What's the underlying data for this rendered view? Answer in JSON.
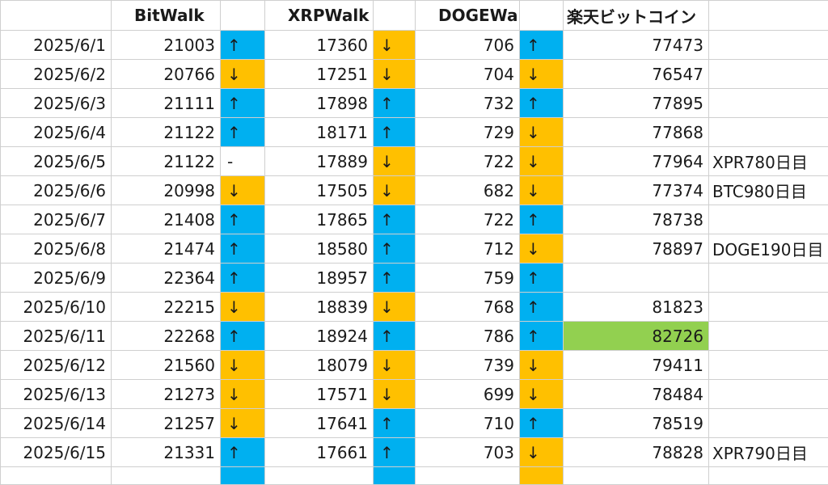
{
  "header": {
    "date": "",
    "bitwalk": "BitWalk",
    "xrpwalk": "XRPWalk",
    "dogewalk": "DOGEWalk",
    "rakuten": "楽天ビットコイン",
    "note": ""
  },
  "rows": [
    {
      "date": "2025/6/1",
      "bit": "21003",
      "bit_arrow": "↑",
      "bit_dir": "up",
      "xrp": "17360",
      "xrp_arrow": "↓",
      "xrp_dir": "down",
      "doge": "706",
      "doge_arrow": "↑",
      "doge_dir": "up",
      "rak": "77473",
      "note": ""
    },
    {
      "date": "2025/6/2",
      "bit": "20766",
      "bit_arrow": "↓",
      "bit_dir": "down",
      "xrp": "17251",
      "xrp_arrow": "↓",
      "xrp_dir": "down",
      "doge": "704",
      "doge_arrow": "↓",
      "doge_dir": "down",
      "rak": "76547",
      "note": ""
    },
    {
      "date": "2025/6/3",
      "bit": "21111",
      "bit_arrow": "↑",
      "bit_dir": "up",
      "xrp": "17898",
      "xrp_arrow": "↑",
      "xrp_dir": "up",
      "doge": "732",
      "doge_arrow": "↑",
      "doge_dir": "up",
      "rak": "77895",
      "note": ""
    },
    {
      "date": "2025/6/4",
      "bit": "21122",
      "bit_arrow": "↑",
      "bit_dir": "up",
      "xrp": "18171",
      "xrp_arrow": "↑",
      "xrp_dir": "up",
      "doge": "729",
      "doge_arrow": "↓",
      "doge_dir": "down",
      "rak": "77868",
      "note": ""
    },
    {
      "date": "2025/6/5",
      "bit": "21122",
      "bit_arrow": "-",
      "bit_dir": "flat",
      "xrp": "17889",
      "xrp_arrow": "↓",
      "xrp_dir": "down",
      "doge": "722",
      "doge_arrow": "↓",
      "doge_dir": "down",
      "rak": "77964",
      "note": "XPR780日目"
    },
    {
      "date": "2025/6/6",
      "bit": "20998",
      "bit_arrow": "↓",
      "bit_dir": "down",
      "xrp": "17505",
      "xrp_arrow": "↓",
      "xrp_dir": "down",
      "doge": "682",
      "doge_arrow": "↓",
      "doge_dir": "down",
      "rak": "77374",
      "note": "BTC980日目"
    },
    {
      "date": "2025/6/7",
      "bit": "21408",
      "bit_arrow": "↑",
      "bit_dir": "up",
      "xrp": "17865",
      "xrp_arrow": "↑",
      "xrp_dir": "up",
      "doge": "722",
      "doge_arrow": "↑",
      "doge_dir": "up",
      "rak": "78738",
      "note": ""
    },
    {
      "date": "2025/6/8",
      "bit": "21474",
      "bit_arrow": "↑",
      "bit_dir": "up",
      "xrp": "18580",
      "xrp_arrow": "↑",
      "xrp_dir": "up",
      "doge": "712",
      "doge_arrow": "↓",
      "doge_dir": "down",
      "rak": "78897",
      "note": "DOGE190日目"
    },
    {
      "date": "2025/6/9",
      "bit": "22364",
      "bit_arrow": "↑",
      "bit_dir": "up",
      "xrp": "18957",
      "xrp_arrow": "↑",
      "xrp_dir": "up",
      "doge": "759",
      "doge_arrow": "↑",
      "doge_dir": "up",
      "rak": "",
      "note": ""
    },
    {
      "date": "2025/6/10",
      "bit": "22215",
      "bit_arrow": "↓",
      "bit_dir": "down",
      "xrp": "18839",
      "xrp_arrow": "↓",
      "xrp_dir": "down",
      "doge": "768",
      "doge_arrow": "↑",
      "doge_dir": "up",
      "rak": "81823",
      "note": ""
    },
    {
      "date": "2025/6/11",
      "bit": "22268",
      "bit_arrow": "↑",
      "bit_dir": "up",
      "xrp": "18924",
      "xrp_arrow": "↑",
      "xrp_dir": "up",
      "doge": "786",
      "doge_arrow": "↑",
      "doge_dir": "up",
      "rak": "82726",
      "note": "",
      "highlight": "#92d050"
    },
    {
      "date": "2025/6/12",
      "bit": "21560",
      "bit_arrow": "↓",
      "bit_dir": "down",
      "xrp": "18079",
      "xrp_arrow": "↓",
      "xrp_dir": "down",
      "doge": "739",
      "doge_arrow": "↓",
      "doge_dir": "down",
      "rak": "79411",
      "note": ""
    },
    {
      "date": "2025/6/13",
      "bit": "21273",
      "bit_arrow": "↓",
      "bit_dir": "down",
      "xrp": "17571",
      "xrp_arrow": "↓",
      "xrp_dir": "down",
      "doge": "699",
      "doge_arrow": "↓",
      "doge_dir": "down",
      "rak": "78484",
      "note": ""
    },
    {
      "date": "2025/6/14",
      "bit": "21257",
      "bit_arrow": "↓",
      "bit_dir": "down",
      "xrp": "17641",
      "xrp_arrow": "↑",
      "xrp_dir": "up",
      "doge": "710",
      "doge_arrow": "↑",
      "doge_dir": "up",
      "rak": "78519",
      "note": ""
    },
    {
      "date": "2025/6/15",
      "bit": "21331",
      "bit_arrow": "↑",
      "bit_dir": "up",
      "xrp": "17661",
      "xrp_arrow": "↑",
      "xrp_dir": "up",
      "doge": "703",
      "doge_arrow": "↓",
      "doge_dir": "down",
      "rak": "78828",
      "note": "XPR790日目"
    }
  ],
  "partial_row": {
    "bit_dir": "up",
    "xrp_dir": "up",
    "doge_dir": "down"
  },
  "colors": {
    "up": "#00b0f0",
    "down": "#ffc000",
    "highlight": "#92d050"
  }
}
